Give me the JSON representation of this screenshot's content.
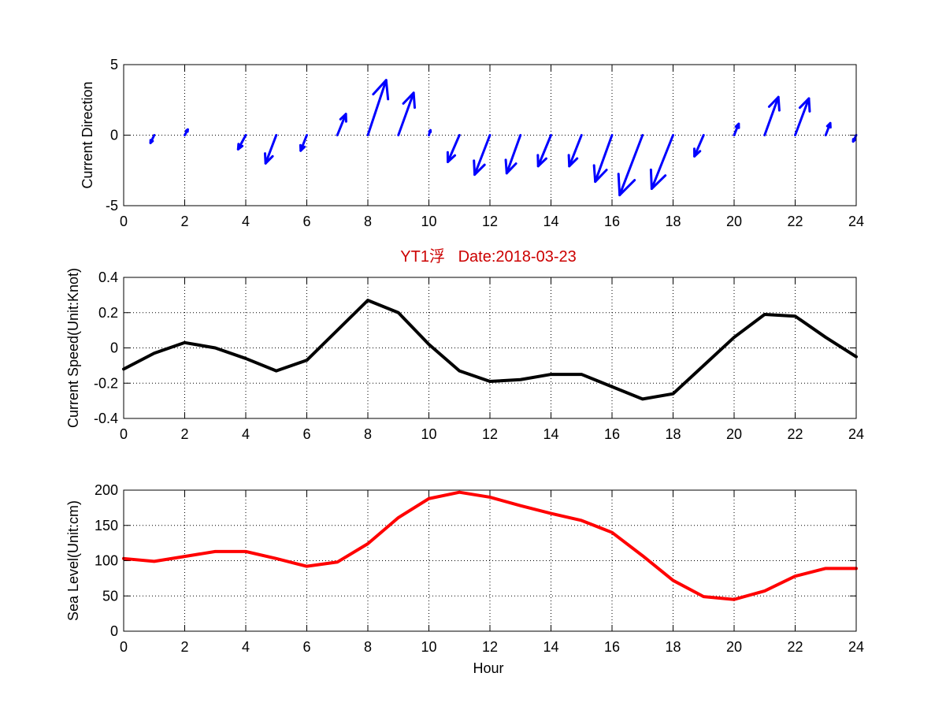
{
  "title": "YT1浮   Date:2018-03-23",
  "title_color": "#cc0000",
  "xlabel": "Hour",
  "chart_data": [
    {
      "type": "quiver",
      "ylabel": "Current Direction",
      "xlim": [
        0,
        24
      ],
      "ylim": [
        -5,
        5
      ],
      "xticks": [
        0,
        2,
        4,
        6,
        8,
        10,
        12,
        14,
        16,
        18,
        20,
        22,
        24
      ],
      "yticks": [
        -5,
        0,
        5
      ],
      "grid": true,
      "color": "#0000ff",
      "vectors": [
        {
          "x": 1,
          "u": -0.12,
          "v": -0.55
        },
        {
          "x": 2,
          "u": 0.1,
          "v": 0.4
        },
        {
          "x": 4,
          "u": -0.25,
          "v": -1.0
        },
        {
          "x": 5,
          "u": -0.35,
          "v": -2.0
        },
        {
          "x": 6,
          "u": -0.2,
          "v": -1.1
        },
        {
          "x": 7,
          "u": 0.28,
          "v": 1.5
        },
        {
          "x": 8,
          "u": 0.6,
          "v": 3.9
        },
        {
          "x": 9,
          "u": 0.5,
          "v": 3.0
        },
        {
          "x": 10,
          "u": 0.05,
          "v": 0.35
        },
        {
          "x": 11,
          "u": -0.38,
          "v": -1.9
        },
        {
          "x": 12,
          "u": -0.5,
          "v": -2.8
        },
        {
          "x": 13,
          "u": -0.45,
          "v": -2.7
        },
        {
          "x": 14,
          "u": -0.42,
          "v": -2.2
        },
        {
          "x": 15,
          "u": -0.4,
          "v": -2.2
        },
        {
          "x": 16,
          "u": -0.55,
          "v": -3.3
        },
        {
          "x": 17,
          "u": -0.75,
          "v": -4.25
        },
        {
          "x": 18,
          "u": -0.7,
          "v": -3.8
        },
        {
          "x": 19,
          "u": -0.3,
          "v": -1.5
        },
        {
          "x": 20,
          "u": 0.15,
          "v": 0.8
        },
        {
          "x": 21,
          "u": 0.45,
          "v": 2.7
        },
        {
          "x": 22,
          "u": 0.45,
          "v": 2.6
        },
        {
          "x": 23,
          "u": 0.15,
          "v": 0.85
        },
        {
          "x": 24,
          "u": -0.1,
          "v": -0.45
        }
      ]
    },
    {
      "type": "line",
      "ylabel": "Current Speed(Unit:Knot)",
      "xlim": [
        0,
        24
      ],
      "ylim": [
        -0.4,
        0.4
      ],
      "xticks": [
        0,
        2,
        4,
        6,
        8,
        10,
        12,
        14,
        16,
        18,
        20,
        22,
        24
      ],
      "yticks": [
        -0.4,
        -0.2,
        0,
        0.2,
        0.4
      ],
      "yticklabels": [
        "-0.4",
        "-0.2",
        "0",
        "0.2",
        "0.4"
      ],
      "grid": true,
      "color": "#000000",
      "x": [
        0,
        1,
        2,
        3,
        4,
        5,
        6,
        7,
        8,
        9,
        10,
        11,
        12,
        13,
        14,
        15,
        16,
        17,
        18,
        19,
        20,
        21,
        22,
        23,
        24
      ],
      "y": [
        -0.12,
        -0.03,
        0.03,
        0.0,
        -0.06,
        -0.13,
        -0.07,
        0.1,
        0.27,
        0.2,
        0.02,
        -0.13,
        -0.19,
        -0.18,
        -0.15,
        -0.15,
        -0.22,
        -0.29,
        -0.26,
        -0.1,
        0.06,
        0.19,
        0.18,
        0.06,
        -0.05
      ]
    },
    {
      "type": "line",
      "ylabel": "Sea Level(Unit:cm)",
      "xlim": [
        0,
        24
      ],
      "ylim": [
        0,
        200
      ],
      "xticks": [
        0,
        2,
        4,
        6,
        8,
        10,
        12,
        14,
        16,
        18,
        20,
        22,
        24
      ],
      "yticks": [
        0,
        50,
        100,
        150,
        200
      ],
      "grid": true,
      "color": "#ff0000",
      "x": [
        0,
        1,
        2,
        3,
        4,
        5,
        6,
        7,
        8,
        9,
        10,
        11,
        12,
        13,
        14,
        15,
        16,
        17,
        18,
        19,
        20,
        21,
        22,
        23,
        24
      ],
      "y": [
        103,
        99,
        106,
        113,
        113,
        103,
        92,
        98,
        124,
        161,
        188,
        197,
        190,
        178,
        167,
        157,
        140,
        107,
        72,
        49,
        45,
        57,
        78,
        89,
        89
      ]
    }
  ]
}
